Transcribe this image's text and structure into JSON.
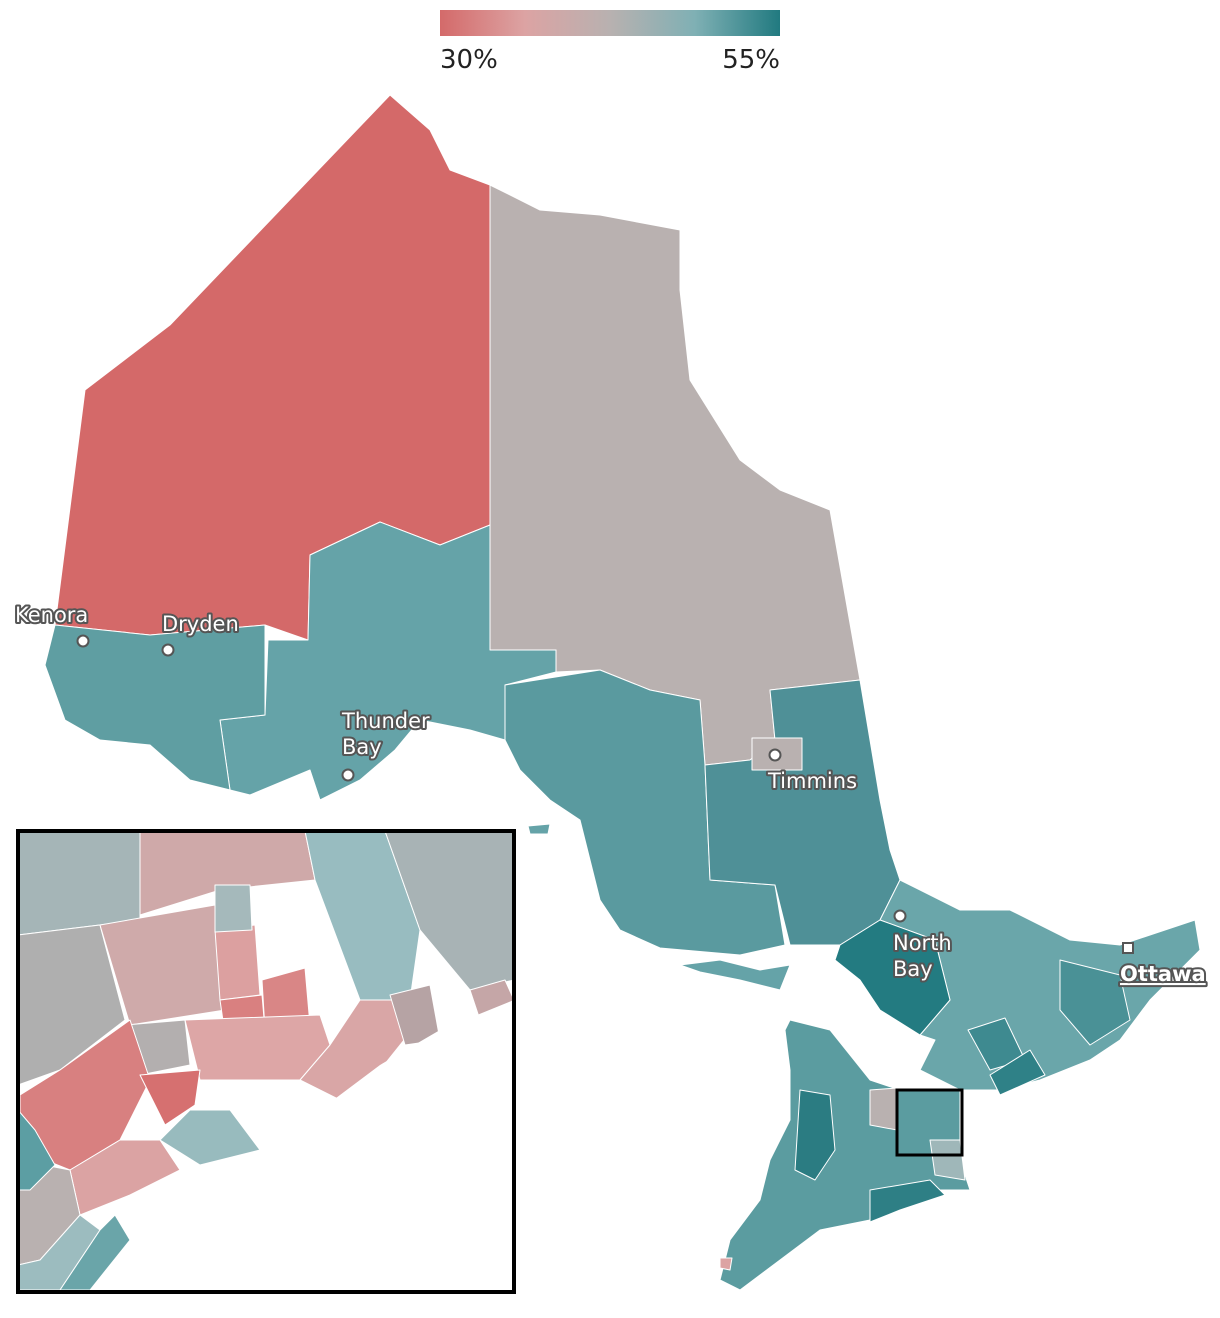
{
  "legend": {
    "colors": [
      "#d46a6a",
      "#dca3a3",
      "#b8b1b0",
      "#7fb0b4",
      "#217a80"
    ],
    "ticks": [
      {
        "value": 30,
        "label": "30%"
      },
      {
        "value": 55,
        "label": "55%"
      }
    ]
  },
  "cities": [
    {
      "lines": [
        "Kenora"
      ]
    },
    {
      "lines": [
        "Dryden"
      ]
    },
    {
      "lines": [
        "Thunder",
        "Bay"
      ]
    },
    {
      "lines": [
        "Timmins"
      ]
    },
    {
      "lines": [
        "North",
        "Bay"
      ]
    },
    {
      "lines": [
        "Ottawa"
      ],
      "capital": true
    }
  ]
}
